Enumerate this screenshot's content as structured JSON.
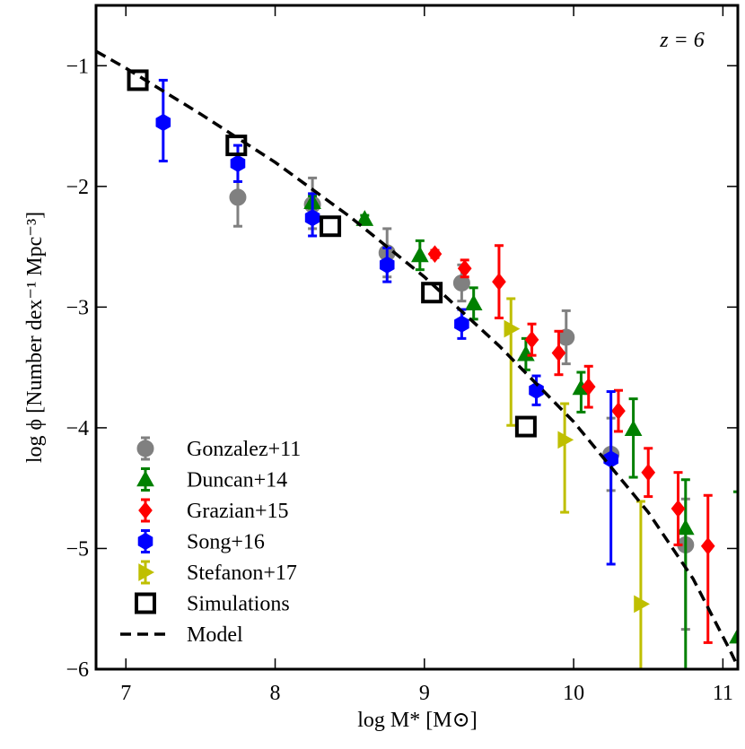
{
  "chart_data": {
    "type": "scatter",
    "annotation": "z = 6",
    "xlabel": "log M* [M⊙]",
    "ylabel": "log ϕ [Number dex⁻¹ Mpc⁻³]",
    "xlim": [
      6.8,
      11.1
    ],
    "ylim": [
      -6,
      -0.5
    ],
    "xticks": [
      7,
      8,
      9,
      10,
      11
    ],
    "yticks": [
      {
        "value": -1,
        "label": "−1"
      },
      {
        "value": -2,
        "label": "−2"
      },
      {
        "value": -3,
        "label": "−3"
      },
      {
        "value": -4,
        "label": "−4"
      },
      {
        "value": -5,
        "label": "−5"
      },
      {
        "value": -6,
        "label": "−6"
      }
    ],
    "legend": "lower left",
    "series": [
      {
        "name": "Gonzalez+11",
        "color": "#808080",
        "marker": "circle",
        "x": [
          7.75,
          8.25,
          8.75,
          9.25,
          9.95,
          10.25,
          10.75
        ],
        "values": [
          -2.09,
          -2.15,
          -2.55,
          -2.8,
          -3.25,
          -4.22,
          -4.97
        ],
        "err_low": [
          0.24,
          0.2,
          0.2,
          0.15,
          0.22,
          0.3,
          0.7
        ],
        "err_high": [
          0.3,
          0.22,
          0.2,
          0.15,
          0.22,
          0.3,
          0.38
        ]
      },
      {
        "name": "Duncan+14",
        "color": "#008000",
        "marker": "triangle",
        "x": [
          8.25,
          8.6,
          8.97,
          9.33,
          9.68,
          10.05,
          10.4,
          10.75,
          11.1
        ],
        "values": [
          -2.13,
          -2.27,
          -2.57,
          -2.97,
          -3.39,
          -3.67,
          -4.01,
          -4.83,
          -5.73
        ],
        "err_low": [
          0.05,
          0.03,
          0.12,
          0.13,
          0.13,
          0.2,
          0.4,
          1.4,
          0.5
        ],
        "err_high": [
          0.05,
          0.03,
          0.12,
          0.13,
          0.13,
          0.13,
          0.25,
          0.4,
          1.2
        ]
      },
      {
        "name": "Grazian+15",
        "color": "#ff0000",
        "marker": "diamond",
        "x": [
          9.07,
          9.27,
          9.5,
          9.72,
          9.9,
          10.1,
          10.3,
          10.5,
          10.7,
          10.9
        ],
        "values": [
          -2.56,
          -2.68,
          -2.79,
          -3.27,
          -3.38,
          -3.66,
          -3.86,
          -4.37,
          -4.67,
          -4.98
        ],
        "err_low": [
          0.03,
          0.07,
          0.3,
          0.13,
          0.18,
          0.17,
          0.17,
          0.2,
          0.3,
          0.8
        ],
        "err_high": [
          0.03,
          0.07,
          0.3,
          0.13,
          0.18,
          0.17,
          0.17,
          0.2,
          0.3,
          0.42
        ]
      },
      {
        "name": "Song+16",
        "color": "#0000ff",
        "marker": "hexagon",
        "x": [
          7.25,
          7.75,
          8.25,
          8.75,
          9.25,
          9.75,
          10.25
        ],
        "values": [
          -1.47,
          -1.81,
          -2.26,
          -2.65,
          -3.14,
          -3.69,
          -4.26
        ],
        "err_low": [
          0.32,
          0.15,
          0.15,
          0.14,
          0.12,
          0.12,
          0.87
        ],
        "err_high": [
          0.35,
          0.15,
          0.2,
          0.14,
          0.12,
          0.12,
          0.56
        ]
      },
      {
        "name": "Stefanon+17",
        "color": "#bfbf00",
        "marker": "triangle-right",
        "x": [
          9.58,
          9.94,
          10.45
        ],
        "values": [
          -3.18,
          -4.1,
          -5.46
        ],
        "err_low": [
          0.8,
          0.6,
          0.6
        ],
        "err_high": [
          0.25,
          0.3,
          0.85
        ]
      },
      {
        "name": "Simulations",
        "color": "#000000",
        "marker": "square",
        "x": [
          7.08,
          7.74,
          8.37,
          9.05,
          9.68
        ],
        "values": [
          -1.12,
          -1.66,
          -2.33,
          -2.88,
          -3.99
        ]
      },
      {
        "name": "Model",
        "color": "#000000",
        "style": "dashed",
        "x": [
          6.8,
          7.0,
          7.5,
          8.0,
          8.5,
          9.0,
          9.5,
          10.0,
          10.5,
          10.8,
          11.05,
          11.1
        ],
        "values": [
          -0.88,
          -1.02,
          -1.4,
          -1.8,
          -2.25,
          -2.75,
          -3.32,
          -3.95,
          -4.7,
          -5.25,
          -5.85,
          -5.98
        ]
      }
    ]
  }
}
